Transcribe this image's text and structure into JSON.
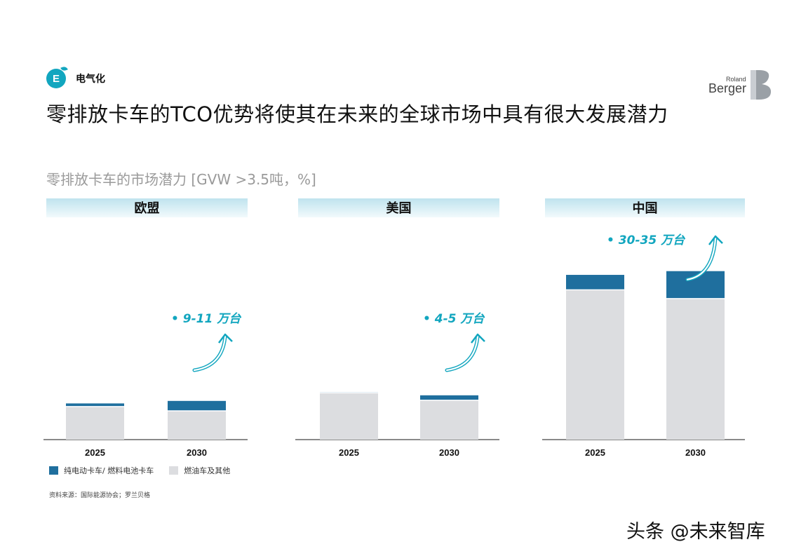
{
  "header": {
    "section_icon_letter": "E",
    "section_label": "电气化",
    "title": "零排放卡车的TCO优势将使其在未来的全球市场中具有很大发展潜力",
    "logo": {
      "small": "Roland",
      "big": "Berger"
    }
  },
  "chart_subtitle": "零排放卡车的市场潜力 [GVW >3.5吨，%]",
  "colors": {
    "zero_emission": "#1f6f9e",
    "fuel": "#dcdde0",
    "accent": "#12a6bf",
    "header_band": "#d2eaf2"
  },
  "chart_data": [
    {
      "type": "bar",
      "stacked": true,
      "title": "欧盟",
      "categories": [
        "2025",
        "2030"
      ],
      "series": [
        {
          "name": "燃油车及其他",
          "values": [
            5.3,
            4.6
          ]
        },
        {
          "name": "纯电动卡车/ 燃料电池卡车",
          "values": [
            0.5,
            1.6
          ]
        }
      ],
      "annotation": "9-11 万台"
    },
    {
      "type": "bar",
      "stacked": true,
      "title": "美国",
      "categories": [
        "2025",
        "2030"
      ],
      "series": [
        {
          "name": "燃油车及其他",
          "values": [
            7.5,
            6.3
          ]
        },
        {
          "name": "纯电动卡车/ 燃料电池卡车",
          "values": [
            0.1,
            0.8
          ]
        }
      ],
      "annotation": "4-5 万台"
    },
    {
      "type": "bar",
      "stacked": true,
      "title": "中国",
      "categories": [
        "2025",
        "2030"
      ],
      "series": [
        {
          "name": "燃油车及其他",
          "values": [
            24.0,
            22.6
          ]
        },
        {
          "name": "纯电动卡车/ 燃料电池卡车",
          "values": [
            2.4,
            4.4
          ]
        }
      ],
      "annotation": "30-35 万台"
    }
  ],
  "legend": {
    "zero_emission_label": "纯电动卡车/ 燃料电池卡车",
    "fuel_label": "燃油车及其他"
  },
  "source": "资料来源：国际能源协会；罗兰贝格",
  "watermark": "头条 @未来智库"
}
